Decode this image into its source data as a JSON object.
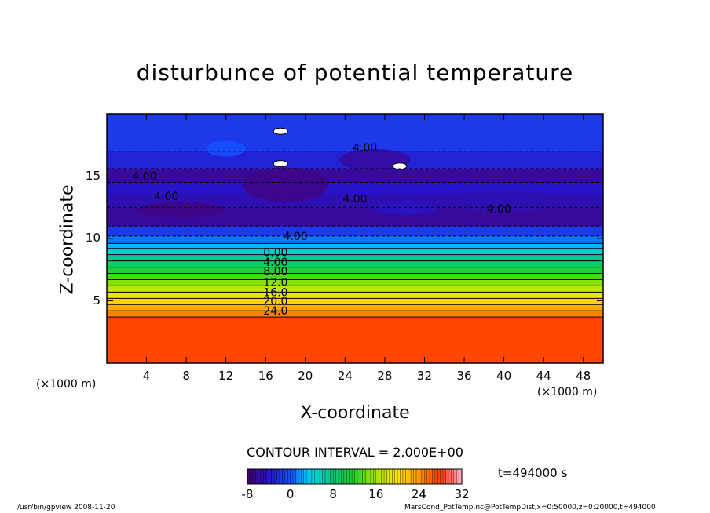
{
  "chart_data": {
    "type": "heatmap",
    "title": "disturbunce of potential temperature",
    "xlabel": "X-coordinate",
    "ylabel": "Z-coordinate",
    "x_unit": "(×1000 m)",
    "z_unit": "(×1000 m)",
    "xlim": [
      0,
      50
    ],
    "ylim": [
      0,
      20
    ],
    "x_ticks": [
      4,
      8,
      12,
      16,
      20,
      24,
      28,
      32,
      36,
      40,
      44,
      48
    ],
    "y_ticks": [
      5,
      10,
      15
    ],
    "contour_interval_label": "CONTOUR INTERVAL = 2.000E+00",
    "contour_labels": [
      "4.00",
      "4.00",
      "4.00",
      "4.00",
      "4.00",
      "4.00",
      "0.00",
      "4.00",
      "8.00",
      "12.0",
      "16.0",
      "20.0",
      "24.0"
    ],
    "layers": [
      {
        "z0": 0.0,
        "z1": 3.7,
        "value": 27.5
      },
      {
        "z0": 3.7,
        "z1": 4.2,
        "value": 25.0
      },
      {
        "z0": 4.2,
        "z1": 4.7,
        "value": 23.0
      },
      {
        "z0": 4.7,
        "z1": 5.2,
        "value": 21.0
      },
      {
        "z0": 5.2,
        "z1": 5.7,
        "value": 19.0
      },
      {
        "z0": 5.7,
        "z1": 6.2,
        "value": 17.0
      },
      {
        "z0": 6.2,
        "z1": 6.7,
        "value": 15.0
      },
      {
        "z0": 6.7,
        "z1": 7.2,
        "value": 13.0
      },
      {
        "z0": 7.2,
        "z1": 7.7,
        "value": 11.0
      },
      {
        "z0": 7.7,
        "z1": 8.2,
        "value": 9.0
      },
      {
        "z0": 8.2,
        "z1": 8.7,
        "value": 7.0
      },
      {
        "z0": 8.7,
        "z1": 9.2,
        "value": 5.0
      },
      {
        "z0": 9.2,
        "z1": 9.6,
        "value": 3.0
      },
      {
        "z0": 9.6,
        "z1": 10.2,
        "value": 1.0
      },
      {
        "z0": 10.2,
        "z1": 11.0,
        "value": -1.5
      },
      {
        "z0": 11.0,
        "z1": 12.5,
        "value": -6.0
      },
      {
        "z0": 12.5,
        "z1": 13.5,
        "value": -5.0
      },
      {
        "z0": 13.5,
        "z1": 14.5,
        "value": -4.0
      },
      {
        "z0": 14.5,
        "z1": 15.6,
        "value": -6.0
      },
      {
        "z0": 15.6,
        "z1": 17.0,
        "value": -3.0
      },
      {
        "z0": 17.0,
        "z1": 20.0,
        "value": -1.5
      }
    ],
    "colorbar": {
      "min": -8,
      "max": 32,
      "ticks": [
        -8,
        0,
        8,
        16,
        24,
        32
      ]
    }
  },
  "time_label": "t=494000 s",
  "footer_left": "/usr/bin/gpview   2008-11-20",
  "footer_right": "MarsCond_PotTemp.nc@PotTempDist,x=0:50000,z=0:20000,t=494000"
}
